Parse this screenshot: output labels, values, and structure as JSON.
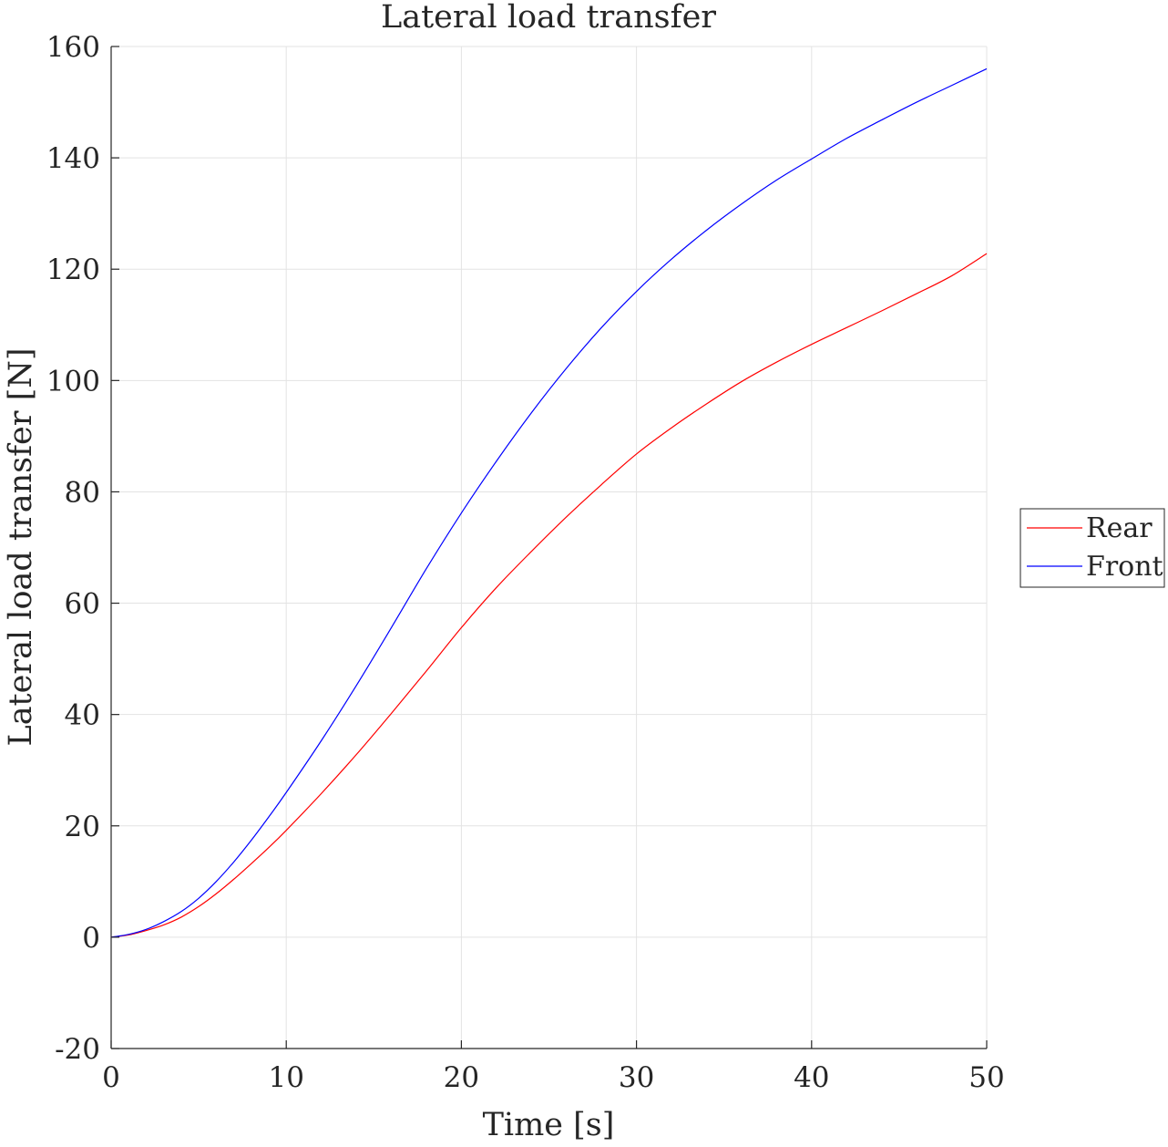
{
  "chart_data": {
    "type": "line",
    "title": "Lateral load transfer",
    "xlabel": "Time [s]",
    "ylabel": "Lateral load transfer [N]",
    "xlim": [
      0,
      50
    ],
    "ylim": [
      -20,
      160
    ],
    "xticks": [
      0,
      10,
      20,
      30,
      40,
      50
    ],
    "yticks": [
      -20,
      0,
      20,
      40,
      60,
      80,
      100,
      120,
      140,
      160
    ],
    "xtick_labels": [
      "0",
      "10",
      "20",
      "30",
      "40",
      "50"
    ],
    "ytick_labels": [
      "-20",
      "0",
      "20",
      "40",
      "60",
      "80",
      "100",
      "120",
      "140",
      "160"
    ],
    "grid": true,
    "legend_position": "outside-right",
    "series": [
      {
        "name": "Rear",
        "color": "#ff0000",
        "x": [
          0,
          1,
          2,
          3,
          4,
          5,
          6,
          7,
          8,
          9,
          10,
          12,
          14,
          16,
          18,
          20,
          22,
          24,
          26,
          28,
          30,
          32,
          34,
          36,
          38,
          40,
          42,
          44,
          46,
          48,
          50
        ],
        "y": [
          0,
          0.4,
          1.2,
          2.2,
          3.6,
          5.5,
          7.8,
          10.4,
          13.2,
          16.1,
          19.2,
          25.8,
          32.8,
          40.2,
          47.8,
          55.6,
          62.8,
          69.3,
          75.5,
          81.3,
          86.8,
          91.5,
          95.8,
          99.8,
          103.3,
          106.5,
          109.5,
          112.5,
          115.6,
          118.8,
          122.8
        ]
      },
      {
        "name": "Front",
        "color": "#0000ff",
        "x": [
          0,
          1,
          2,
          3,
          4,
          5,
          6,
          7,
          8,
          9,
          10,
          12,
          14,
          16,
          18,
          20,
          22,
          24,
          26,
          28,
          30,
          32,
          34,
          36,
          38,
          40,
          42,
          44,
          46,
          48,
          50
        ],
        "y": [
          0,
          0.5,
          1.4,
          2.8,
          4.6,
          7.0,
          10.0,
          13.5,
          17.4,
          21.6,
          26.0,
          35.3,
          45.2,
          55.6,
          66.2,
          76.2,
          85.5,
          94.2,
          102.2,
          109.5,
          116.0,
          121.8,
          127.0,
          131.7,
          136.0,
          139.8,
          143.5,
          146.8,
          150.0,
          153.0,
          156.0
        ]
      }
    ]
  }
}
